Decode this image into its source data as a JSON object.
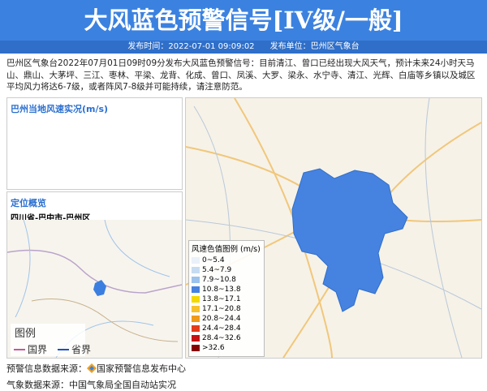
{
  "header": {
    "title": "大风蓝色预警信号[IV级/一般]",
    "publish_time": "发布时间：2022-07-01 09:09:02",
    "publisher": "发布单位：巴州区气象台"
  },
  "body": "巴州区气象台2022年07月01日09时09分发布大风蓝色预警信号：目前清江、曾口已经出现大风天气，预计未来24小时天马山、鼎山、大茅坪、三江、枣林、平梁、龙背、化成、曾口、凤溪、大罗、梁永、水宁寺、清江、光辉、白庙等乡镇以及城区平均风力将达6-7级，或者阵风7-8级并可能持续，请注意防范。",
  "wind_panel": {
    "title": "巴州当地风速实况(m/s)"
  },
  "location_panel": {
    "title": "定位概览",
    "location": "四川省-巴中市-巴州区",
    "legend_title": "图例",
    "legend_items": [
      "国界",
      "省界"
    ]
  },
  "map_legend": {
    "title": "风速色值图例 (m/s)",
    "items": [
      {
        "label": "0~5.4",
        "color": "#eaf1f9"
      },
      {
        "label": "5.4~7.9",
        "color": "#c6dcf2"
      },
      {
        "label": "7.9~10.8",
        "color": "#9cc3ec"
      },
      {
        "label": "10.8~13.8",
        "color": "#4682e0"
      },
      {
        "label": "13.8~17.1",
        "color": "#f3d900"
      },
      {
        "label": "17.1~20.8",
        "color": "#f6c12c"
      },
      {
        "label": "20.8~24.4",
        "color": "#ef9a1a"
      },
      {
        "label": "24.4~28.4",
        "color": "#e43b1b"
      },
      {
        "label": "28.4~32.6",
        "color": "#c51212"
      },
      {
        "label": ">32.6",
        "color": "#860000"
      }
    ]
  },
  "footer": {
    "source_label": "预警信息数据来源：",
    "source": "国家预警信息发布中心",
    "weather_source": "气象数据来源：中国气象局全国自动站实况"
  }
}
